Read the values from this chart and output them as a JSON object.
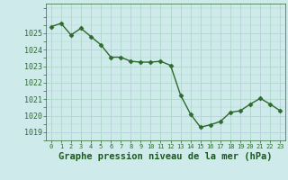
{
  "x": [
    0,
    1,
    2,
    3,
    4,
    5,
    6,
    7,
    8,
    9,
    10,
    11,
    12,
    13,
    14,
    15,
    16,
    17,
    18,
    19,
    20,
    21,
    22,
    23
  ],
  "y": [
    1025.4,
    1025.6,
    1024.9,
    1025.3,
    1024.8,
    1024.3,
    1023.55,
    1023.55,
    1023.3,
    1023.25,
    1023.25,
    1023.3,
    1023.05,
    1021.25,
    1020.1,
    1019.3,
    1019.45,
    1019.65,
    1020.2,
    1020.3,
    1020.7,
    1021.05,
    1020.7,
    1020.3
  ],
  "line_color": "#2d6a2d",
  "marker": "D",
  "markersize": 2.5,
  "linewidth": 1.0,
  "bg_color": "#ceeaea",
  "grid_color": "#b0d8cc",
  "xlabel": "Graphe pression niveau de la mer (hPa)",
  "xlabel_fontsize": 7.5,
  "xlabel_color": "#1a5c1a",
  "ylim": [
    1018.5,
    1026.8
  ],
  "yticks": [
    1019,
    1020,
    1021,
    1022,
    1023,
    1024,
    1025
  ],
  "ytick_fontsize": 6.0,
  "xtick_fontsize": 5.0,
  "xtick_labels": [
    "0",
    "1",
    "2",
    "3",
    "4",
    "5",
    "6",
    "7",
    "8",
    "9",
    "10",
    "11",
    "12",
    "13",
    "14",
    "15",
    "16",
    "17",
    "18",
    "19",
    "20",
    "21",
    "22",
    "23"
  ]
}
